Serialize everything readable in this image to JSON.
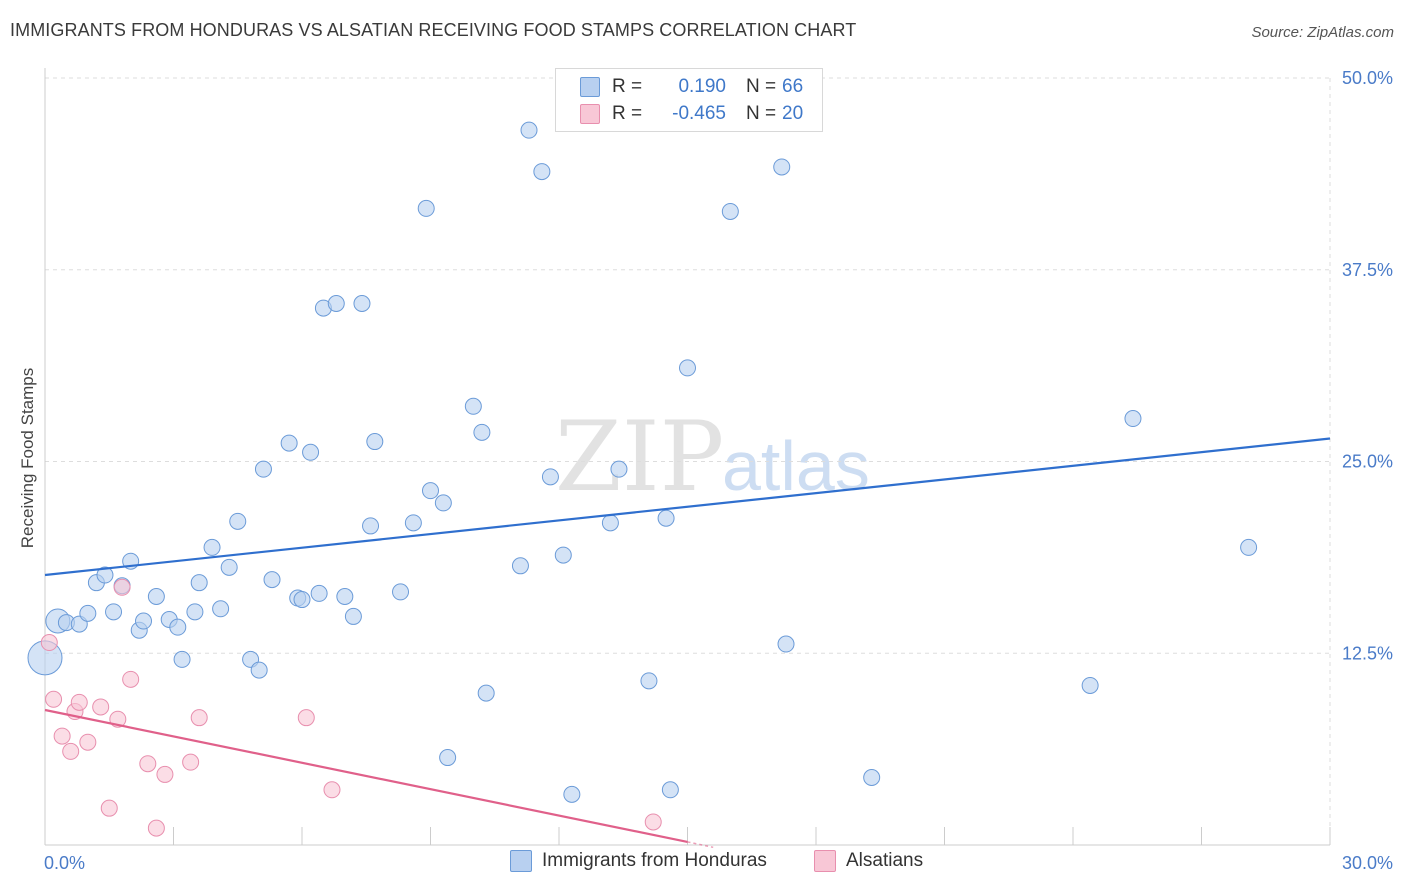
{
  "title": "IMMIGRANTS FROM HONDURAS VS ALSATIAN RECEIVING FOOD STAMPS CORRELATION CHART",
  "source": "Source: ZipAtlas.com",
  "watermark": {
    "zip": "ZIP",
    "atlas": "atlas"
  },
  "legend": {
    "r_label": "R =",
    "n_label": "N =",
    "series": [
      {
        "r": "0.190",
        "n": "66",
        "fill": "#b8d0f0",
        "stroke": "#6b9bd8"
      },
      {
        "r": "-0.465",
        "n": "20",
        "fill": "#f8c7d6",
        "stroke": "#e88fae"
      }
    ]
  },
  "colors": {
    "blue_fill": "#b8d0f0",
    "blue_stroke": "#6b9bd8",
    "blue_line": "#2f6fce",
    "pink_fill": "#f8c7d6",
    "pink_stroke": "#e88fae",
    "pink_line": "#e0608a",
    "grid": "#dddddd",
    "tick_text": "#4a7bc8"
  },
  "chart_data": {
    "type": "scatter",
    "title": "IMMIGRANTS FROM HONDURAS VS ALSATIAN RECEIVING FOOD STAMPS CORRELATION CHART",
    "xlabel": "",
    "ylabel": "Receiving Food Stamps",
    "xlim": [
      0,
      30
    ],
    "ylim": [
      0,
      50
    ],
    "x_tick_labels": [
      "0.0%",
      "30.0%"
    ],
    "y_ticks": [
      12.5,
      25.0,
      37.5,
      50.0
    ],
    "y_tick_labels": [
      "12.5%",
      "25.0%",
      "37.5%",
      "50.0%"
    ],
    "grid": true,
    "legend_position": "top-center",
    "series": [
      {
        "name": "Immigrants from Honduras",
        "points": [
          [
            0.0,
            12.2,
            32
          ],
          [
            0.3,
            14.6,
            22
          ],
          [
            0.5,
            14.5,
            14
          ],
          [
            0.8,
            14.4,
            14
          ],
          [
            1.0,
            15.1,
            14
          ],
          [
            1.2,
            17.1,
            14
          ],
          [
            1.4,
            17.6,
            14
          ],
          [
            1.6,
            15.2,
            14
          ],
          [
            1.8,
            16.9,
            14
          ],
          [
            2.0,
            18.5,
            14
          ],
          [
            2.2,
            14.0,
            14
          ],
          [
            2.3,
            14.6,
            14
          ],
          [
            2.6,
            16.2,
            14
          ],
          [
            2.9,
            14.7,
            14
          ],
          [
            3.1,
            14.2,
            14
          ],
          [
            3.2,
            12.1,
            14
          ],
          [
            3.5,
            15.2,
            14
          ],
          [
            3.6,
            17.1,
            14
          ],
          [
            3.9,
            19.4,
            14
          ],
          [
            4.1,
            15.4,
            14
          ],
          [
            4.3,
            18.1,
            14
          ],
          [
            4.5,
            21.1,
            14
          ],
          [
            4.8,
            12.1,
            14
          ],
          [
            5.0,
            11.4,
            14
          ],
          [
            5.1,
            24.5,
            14
          ],
          [
            5.3,
            17.3,
            14
          ],
          [
            5.7,
            26.2,
            14
          ],
          [
            5.9,
            16.1,
            14
          ],
          [
            6.0,
            16.0,
            14
          ],
          [
            6.2,
            25.6,
            14
          ],
          [
            6.4,
            16.4,
            14
          ],
          [
            6.5,
            35.0,
            14
          ],
          [
            6.8,
            35.3,
            14
          ],
          [
            7.0,
            16.2,
            14
          ],
          [
            7.2,
            14.9,
            14
          ],
          [
            7.4,
            35.3,
            14
          ],
          [
            7.6,
            20.8,
            14
          ],
          [
            7.7,
            26.3,
            14
          ],
          [
            8.3,
            16.5,
            14
          ],
          [
            8.6,
            21.0,
            14
          ],
          [
            8.9,
            41.5,
            14
          ],
          [
            9.0,
            23.1,
            14
          ],
          [
            9.3,
            22.3,
            14
          ],
          [
            9.4,
            5.7,
            14
          ],
          [
            10.0,
            28.6,
            14
          ],
          [
            10.2,
            26.9,
            14
          ],
          [
            10.3,
            9.9,
            14
          ],
          [
            11.1,
            18.2,
            14
          ],
          [
            11.3,
            46.6,
            14
          ],
          [
            11.6,
            43.9,
            14
          ],
          [
            11.8,
            24.0,
            14
          ],
          [
            12.1,
            18.9,
            14
          ],
          [
            12.3,
            3.3,
            14
          ],
          [
            13.2,
            21.0,
            14
          ],
          [
            13.4,
            24.5,
            14
          ],
          [
            14.1,
            10.7,
            14
          ],
          [
            14.5,
            21.3,
            14
          ],
          [
            14.6,
            3.6,
            14
          ],
          [
            15.0,
            31.1,
            14
          ],
          [
            16.0,
            41.3,
            14
          ],
          [
            17.2,
            44.2,
            14
          ],
          [
            17.3,
            13.1,
            14
          ],
          [
            19.3,
            4.4,
            14
          ],
          [
            24.4,
            10.4,
            14
          ],
          [
            25.4,
            27.8,
            14
          ],
          [
            28.1,
            19.4,
            14
          ]
        ],
        "trend": {
          "x": [
            0,
            30
          ],
          "y": [
            17.6,
            26.5
          ]
        }
      },
      {
        "name": "Alsatians",
        "points": [
          [
            0.1,
            13.2,
            14
          ],
          [
            0.2,
            9.5,
            14
          ],
          [
            0.4,
            7.1,
            14
          ],
          [
            0.6,
            6.1,
            14
          ],
          [
            0.7,
            8.7,
            14
          ],
          [
            0.8,
            9.3,
            14
          ],
          [
            1.0,
            6.7,
            14
          ],
          [
            1.3,
            9.0,
            14
          ],
          [
            1.5,
            2.4,
            14
          ],
          [
            1.7,
            8.2,
            14
          ],
          [
            1.8,
            16.8,
            14
          ],
          [
            2.0,
            10.8,
            14
          ],
          [
            2.4,
            5.3,
            14
          ],
          [
            2.6,
            1.1,
            14
          ],
          [
            2.8,
            4.6,
            14
          ],
          [
            3.4,
            5.4,
            14
          ],
          [
            3.6,
            8.3,
            14
          ],
          [
            6.1,
            8.3,
            14
          ],
          [
            6.7,
            3.6,
            14
          ],
          [
            14.2,
            1.5,
            14
          ]
        ],
        "trend": {
          "x": [
            0,
            15
          ],
          "y": [
            8.8,
            0.2
          ]
        },
        "trend_dashed_extension": {
          "x": [
            15,
            15.6
          ],
          "y": [
            0.2,
            -0.15
          ]
        }
      }
    ]
  }
}
